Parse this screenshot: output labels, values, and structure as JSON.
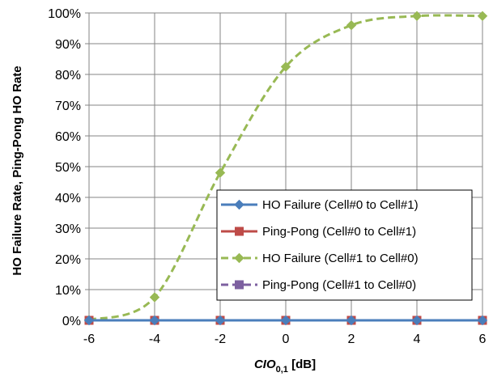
{
  "chart_data": {
    "type": "line",
    "x": [
      -6,
      -4,
      -2,
      0,
      2,
      4,
      6
    ],
    "xlim": [
      -6,
      6
    ],
    "ylim": [
      0,
      1
    ],
    "xticks": [
      "-6",
      "-4",
      "-2",
      "0",
      "2",
      "4",
      "6"
    ],
    "yticks": [
      "0%",
      "10%",
      "20%",
      "30%",
      "40%",
      "50%",
      "60%",
      "70%",
      "80%",
      "90%",
      "100%"
    ],
    "xlabel": {
      "main": "CIO",
      "sub": "0,1",
      "unit": " [dB]"
    },
    "ylabel": "HO Failure Rate, Ping-Pong HO Rate",
    "grid": true,
    "legend_position": "bottom-right",
    "series": [
      {
        "name": "HO Failure (Cell#0 to Cell#1)",
        "values": [
          0,
          0,
          0,
          0,
          0,
          0,
          0
        ],
        "color": "#4a7ebb",
        "marker": "diamond",
        "dash": "solid"
      },
      {
        "name": "Ping-Pong (Cell#0 to Cell#1)",
        "values": [
          0,
          0,
          0,
          0,
          0,
          0,
          0
        ],
        "color": "#be4b48",
        "marker": "square",
        "dash": "solid"
      },
      {
        "name": "HO Failure (Cell#1 to Cell#0)",
        "values": [
          0.001,
          0.075,
          0.48,
          0.825,
          0.96,
          0.99,
          0.99
        ],
        "color": "#98b954",
        "marker": "diamond",
        "dash": "dashed"
      },
      {
        "name": "Ping-Pong (Cell#1 to Cell#0)",
        "values": [
          0,
          0,
          0,
          0,
          0,
          0,
          0
        ],
        "color": "#7d60a0",
        "marker": "square",
        "dash": "dashed"
      }
    ]
  }
}
